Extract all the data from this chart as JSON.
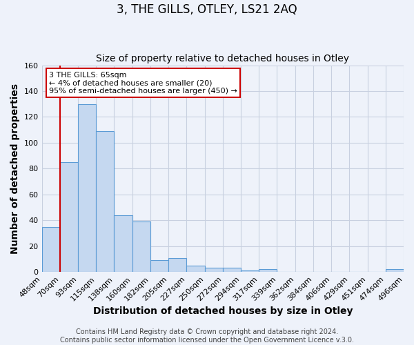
{
  "title": "3, THE GILLS, OTLEY, LS21 2AQ",
  "subtitle": "Size of property relative to detached houses in Otley",
  "xlabel": "Distribution of detached houses by size in Otley",
  "ylabel": "Number of detached properties",
  "bar_values": [
    35,
    85,
    130,
    109,
    44,
    39,
    9,
    11,
    5,
    3,
    3,
    1,
    2,
    0,
    0,
    0,
    0,
    0,
    0,
    2
  ],
  "bar_labels": [
    "48sqm",
    "70sqm",
    "93sqm",
    "115sqm",
    "138sqm",
    "160sqm",
    "182sqm",
    "205sqm",
    "227sqm",
    "250sqm",
    "272sqm",
    "294sqm",
    "317sqm",
    "339sqm",
    "362sqm",
    "384sqm",
    "406sqm",
    "429sqm",
    "451sqm",
    "474sqm",
    "496sqm"
  ],
  "bar_color": "#c5d8f0",
  "bar_edge_color": "#5b9bd5",
  "ylim": [
    0,
    160
  ],
  "yticks": [
    0,
    20,
    40,
    60,
    80,
    100,
    120,
    140,
    160
  ],
  "property_line_color": "#cc0000",
  "property_line_bar_index": 1,
  "annotation_title": "3 THE GILLS: 65sqm",
  "annotation_line1": "← 4% of detached houses are smaller (20)",
  "annotation_line2": "95% of semi-detached houses are larger (450) →",
  "annotation_box_color": "#ffffff",
  "annotation_box_edge_color": "#cc0000",
  "footer_line1": "Contains HM Land Registry data © Crown copyright and database right 2024.",
  "footer_line2": "Contains public sector information licensed under the Open Government Licence v.3.0.",
  "background_color": "#eef2fa",
  "grid_color": "#d0d8e8",
  "title_fontsize": 12,
  "subtitle_fontsize": 10,
  "axis_label_fontsize": 10,
  "tick_fontsize": 8,
  "footer_fontsize": 7
}
